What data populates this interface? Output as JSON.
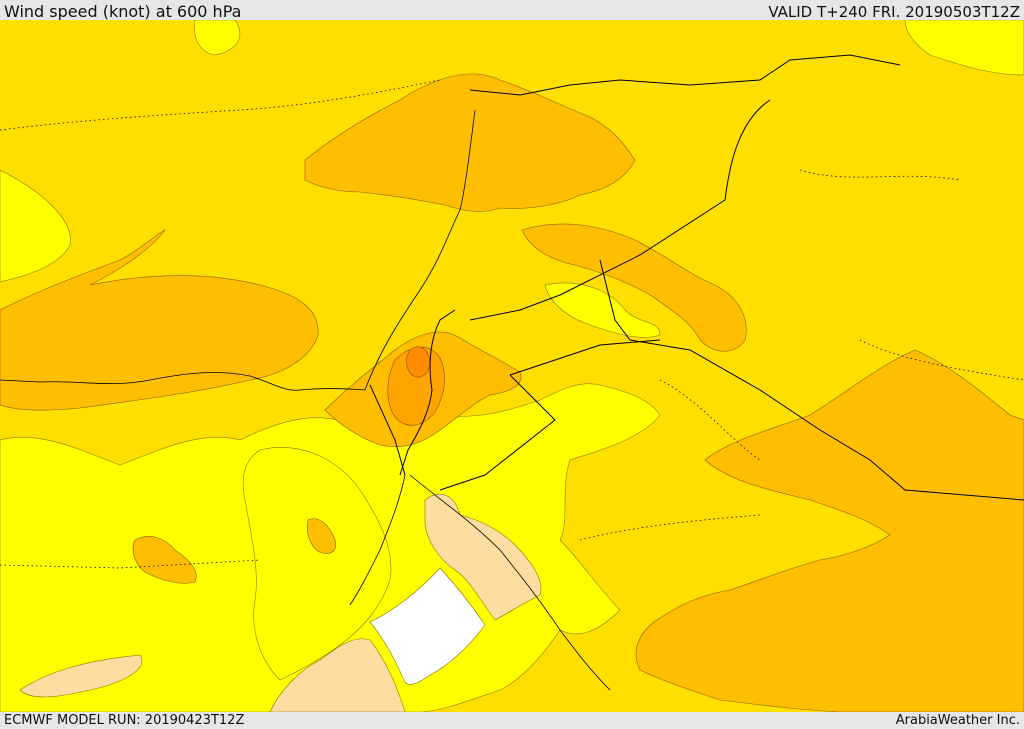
{
  "header": {
    "title": "Wind speed (knot) at 600 hPa",
    "valid": "VALID T+240 FRI. 20190503T12Z"
  },
  "footer": {
    "model_run": "ECMWF MODEL RUN: 20190423T12Z",
    "credit": "ArabiaWeather Inc."
  },
  "colors": {
    "band_lowest": "#ffffff",
    "band_low": "#fddda0",
    "band_yellow": "#ffff00",
    "band_gold": "#ffdf00",
    "band_amber": "#ffbf00",
    "band_orange": "#ffa500",
    "band_dark_orange": "#ff8c00",
    "coastline": "#000000"
  }
}
